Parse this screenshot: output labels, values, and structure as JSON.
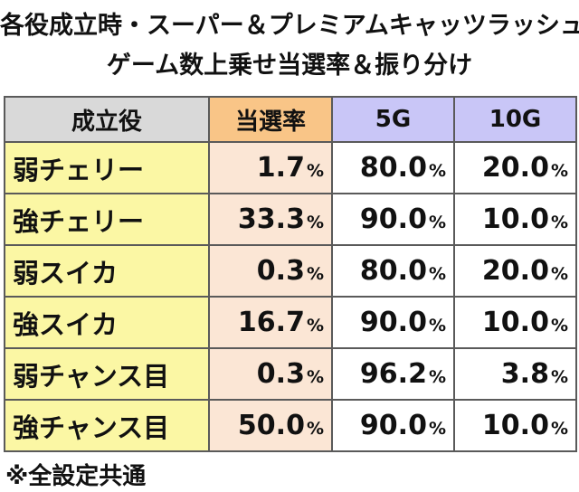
{
  "title": {
    "line1": "各役成立時・スーパー＆プレミアムキャッツラッシュ",
    "line2": "ゲーム数上乗せ当選率＆振り分け"
  },
  "table": {
    "headers": [
      "成立役",
      "当選率",
      "5G",
      "10G"
    ],
    "percent_sign": "%",
    "rows": [
      {
        "yaku": "弱チェリー",
        "rate": "1.7",
        "g5": "80.0",
        "g10": "20.0"
      },
      {
        "yaku": "強チェリー",
        "rate": "33.3",
        "g5": "90.0",
        "g10": "10.0"
      },
      {
        "yaku": "弱スイカ",
        "rate": "0.3",
        "g5": "80.0",
        "g10": "20.0"
      },
      {
        "yaku": "強スイカ",
        "rate": "16.7",
        "g5": "90.0",
        "g10": "10.0"
      },
      {
        "yaku": "弱チャンス目",
        "rate": "0.3",
        "g5": "96.2",
        "g10": "3.8"
      },
      {
        "yaku": "強チャンス目",
        "rate": "50.0",
        "g5": "90.0",
        "g10": "10.0"
      }
    ]
  },
  "note": "※全設定共通",
  "colors": {
    "header_yaku": "#d9d9d9",
    "header_rate": "#f9c587",
    "header_games": "#c9c6f7",
    "cell_yaku": "#fbf7a4",
    "cell_rate": "#fbe6d5",
    "cell_games": "#ffffff",
    "border": "#5a5a5a"
  }
}
